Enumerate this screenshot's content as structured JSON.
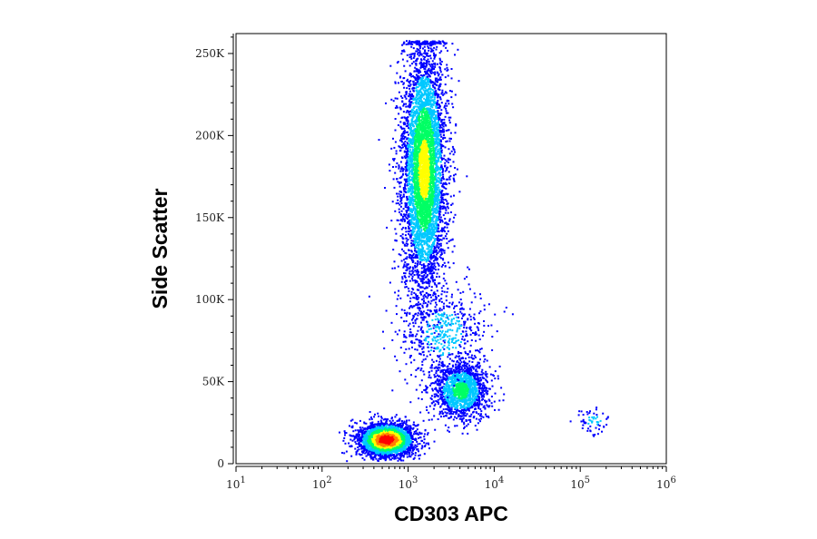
{
  "chart_data": {
    "type": "scatter",
    "title": "",
    "xlabel": "CD303 APC",
    "ylabel": "Side Scatter",
    "x_scale": "log",
    "xlim": [
      10,
      1000000
    ],
    "ylim": [
      0,
      262144
    ],
    "x_tick_labels": [
      {
        "value": 10,
        "base": "10",
        "exp": "1"
      },
      {
        "value": 100,
        "base": "10",
        "exp": "2"
      },
      {
        "value": 1000,
        "base": "10",
        "exp": "3"
      },
      {
        "value": 10000,
        "base": "10",
        "exp": "4"
      },
      {
        "value": 100000,
        "base": "10",
        "exp": "5"
      },
      {
        "value": 1000000,
        "base": "10",
        "exp": "6"
      }
    ],
    "y_tick_labels": [
      {
        "value": 0,
        "label": "0"
      },
      {
        "value": 50000,
        "label": "50K"
      },
      {
        "value": 100000,
        "label": "100K"
      },
      {
        "value": 150000,
        "label": "150K"
      },
      {
        "value": 200000,
        "label": "200K"
      },
      {
        "value": 250000,
        "label": "250K"
      }
    ],
    "color_scale": [
      "#0000ff",
      "#00c8ff",
      "#00ff64",
      "#ffff00",
      "#ff8000",
      "#ff0000"
    ],
    "grid": false,
    "series": [
      {
        "points": [
          {
            "x": 1500,
            "y": 180000,
            "count": 5200
          },
          {
            "x": 550,
            "y": 15000,
            "count": 3000
          },
          {
            "x": 4000,
            "y": 45000,
            "count": 1500
          },
          {
            "x": 140000,
            "y": 27000,
            "count": 60
          },
          {
            "x": 2500,
            "y": 80000,
            "count": 500
          }
        ]
      }
    ]
  }
}
